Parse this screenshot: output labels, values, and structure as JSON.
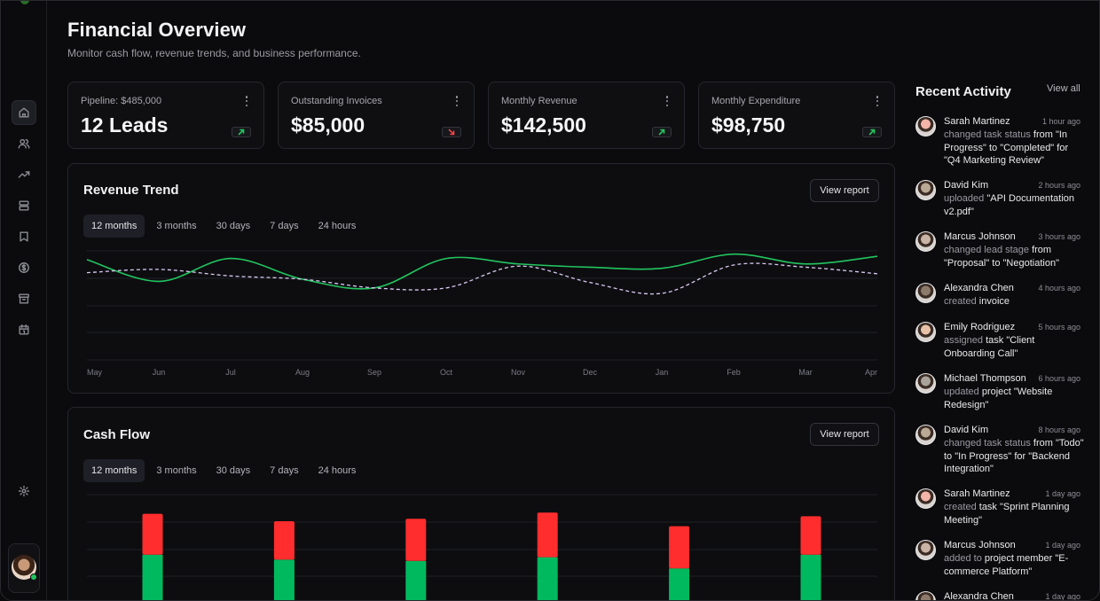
{
  "header": {
    "title": "Financial Overview",
    "subtitle": "Monitor cash flow, revenue trends, and business performance."
  },
  "kpis": [
    {
      "label": "Pipeline: $485,000",
      "value": "12 Leads",
      "trend": "up"
    },
    {
      "label": "Outstanding Invoices",
      "value": "$85,000",
      "trend": "down"
    },
    {
      "label": "Monthly Revenue",
      "value": "$142,500",
      "trend": "up"
    },
    {
      "label": "Monthly Expenditure",
      "value": "$98,750",
      "trend": "up"
    }
  ],
  "revenue": {
    "title": "Revenue Trend",
    "view_label": "View report",
    "tabs": [
      "12 months",
      "3 months",
      "30 days",
      "7 days",
      "24 hours"
    ],
    "active_tab": "12 months"
  },
  "cashflow": {
    "title": "Cash Flow",
    "view_label": "View report",
    "tabs": [
      "12 months",
      "3 months",
      "30 days",
      "7 days",
      "24 hours"
    ],
    "active_tab": "12 months"
  },
  "chart_data": [
    {
      "type": "line",
      "x": [
        "May",
        "Jun",
        "Jul",
        "Aug",
        "Sep",
        "Oct",
        "Nov",
        "Dec",
        "Jan",
        "Feb",
        "Mar",
        "Apr"
      ],
      "series": [
        {
          "color": "#22c55e",
          "style": "solid",
          "values": [
            0.92,
            0.72,
            0.93,
            0.74,
            0.66,
            0.93,
            0.88,
            0.85,
            0.84,
            0.97,
            0.88,
            0.95
          ]
        },
        {
          "color": "#d9c8f0",
          "style": "dashed",
          "values": [
            0.8,
            0.83,
            0.77,
            0.74,
            0.66,
            0.66,
            0.86,
            0.71,
            0.61,
            0.87,
            0.85,
            0.79
          ]
        }
      ],
      "grid": true
    },
    {
      "type": "bar",
      "stacked": true,
      "series": [
        {
          "color": "#00b95f",
          "values": [
            0.53,
            0.49,
            0.48,
            0.51,
            0.42,
            0.53
          ]
        },
        {
          "color": "#ff2d2d",
          "values": [
            0.33,
            0.31,
            0.34,
            0.36,
            0.34,
            0.31
          ]
        }
      ],
      "grid": true
    }
  ],
  "activity": {
    "title": "Recent Activity",
    "view_all": "View all",
    "items": [
      {
        "name": "Sarah Martinez",
        "time": "1 hour ago",
        "pre": "changed task status",
        "mid": " from \"In Progress\" to \"Completed\" for \"Q4 Marketing Review\"",
        "avatar": "#f2b5a8"
      },
      {
        "name": "David Kim",
        "time": "2 hours ago",
        "pre": "uploaded",
        "mid": " \"API Documentation v2.pdf\"",
        "avatar": "#b9a894"
      },
      {
        "name": "Marcus Johnson",
        "time": "3 hours ago",
        "pre": "changed lead stage",
        "mid": " from \"Proposal\" to \"Negotiation\"",
        "avatar": "#c8b3a4"
      },
      {
        "name": "Alexandra Chen",
        "time": "4 hours ago",
        "pre": "created",
        "mid": " invoice",
        "avatar": "#8d7a6b"
      },
      {
        "name": "Emily Rodriguez",
        "time": "5 hours ago",
        "pre": "assigned",
        "mid": " task \"Client Onboarding Call\"",
        "avatar": "#e7c2a8"
      },
      {
        "name": "Michael Thompson",
        "time": "6 hours ago",
        "pre": "updated",
        "mid": " project \"Website Redesign\"",
        "avatar": "#a8a29a"
      },
      {
        "name": "David Kim",
        "time": "8 hours ago",
        "pre": "changed task status",
        "mid": " from \"Todo\" to \"In Progress\" for \"Backend Integration\"",
        "avatar": "#b9a894"
      },
      {
        "name": "Sarah Martinez",
        "time": "1 day ago",
        "pre": "created",
        "mid": " task \"Sprint Planning Meeting\"",
        "avatar": "#f2b5a8"
      },
      {
        "name": "Marcus Johnson",
        "time": "1 day ago",
        "pre": "added to",
        "mid": " project member \"E-commerce Platform\"",
        "avatar": "#c8b3a4"
      },
      {
        "name": "Alexandra Chen",
        "time": "1 day ago",
        "pre": "",
        "mid": "",
        "avatar": "#8d7a6b"
      }
    ]
  }
}
